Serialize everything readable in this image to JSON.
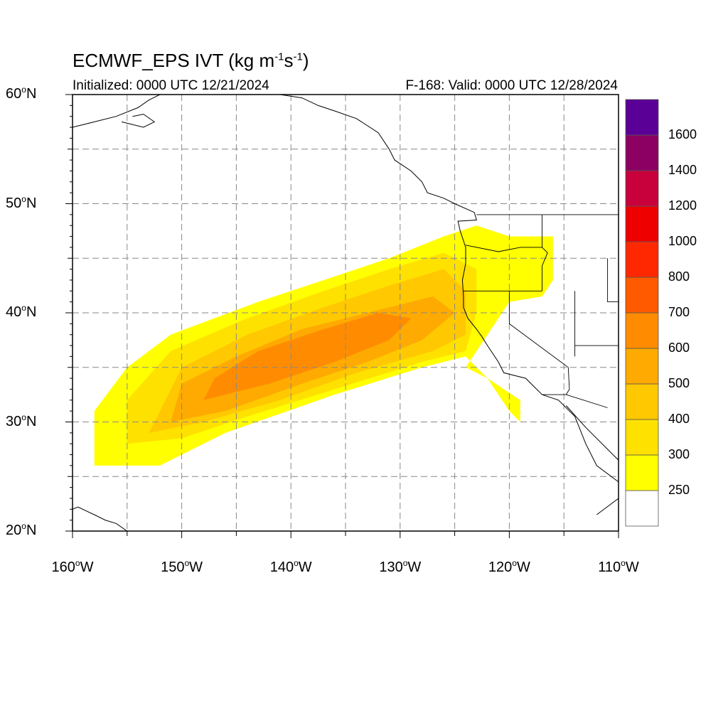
{
  "title": {
    "model": "ECMWF_EPS IVT",
    "units_prefix": "(kg m",
    "exp1": "-1",
    "units_mid": "s",
    "exp2": "-1",
    "units_suffix": ")"
  },
  "subtitle_left": "Initialized: 0000 UTC 12/21/2024",
  "subtitle_right": "F-168: Valid: 0000 UTC 12/28/2024",
  "map": {
    "lon_range": [
      -160,
      -110
    ],
    "lat_range": [
      20,
      60
    ],
    "lat_ticks": [
      {
        "value": 60,
        "num": "60",
        "suffix": "N"
      },
      {
        "value": 50,
        "num": "50",
        "suffix": "N"
      },
      {
        "value": 40,
        "num": "40",
        "suffix": "N"
      },
      {
        "value": 30,
        "num": "30",
        "suffix": "N"
      },
      {
        "value": 20,
        "num": "20",
        "suffix": "N"
      }
    ],
    "lon_ticks": [
      {
        "value": -160,
        "num": "160",
        "suffix": "W"
      },
      {
        "value": -150,
        "num": "150",
        "suffix": "W"
      },
      {
        "value": -140,
        "num": "140",
        "suffix": "W"
      },
      {
        "value": -130,
        "num": "130",
        "suffix": "W"
      },
      {
        "value": -120,
        "num": "120",
        "suffix": "W"
      },
      {
        "value": -110,
        "num": "110",
        "suffix": "W"
      }
    ],
    "grid_lon": [
      -155,
      -150,
      -145,
      -140,
      -135,
      -130,
      -125,
      -120,
      -115
    ],
    "grid_lat": [
      25,
      30,
      35,
      40,
      45,
      50,
      55
    ],
    "grid_style": "dashed gray"
  },
  "colorbar": {
    "labels": [
      "250",
      "300",
      "400",
      "500",
      "600",
      "700",
      "800",
      "1000",
      "1200",
      "1400",
      "1600"
    ],
    "colors": [
      "#ffffff",
      "#ffff00",
      "#ffe100",
      "#ffc800",
      "#ffaa00",
      "#ff8c00",
      "#ff5a00",
      "#ff2800",
      "#ee0000",
      "#c8003c",
      "#8c0064",
      "#5a0096"
    ]
  },
  "ivt_field": {
    "description_units": "kg m-1 s-1",
    "bands": [
      {
        "level": 250,
        "color": "#ffff00",
        "polygon": [
          [
            -158,
            26
          ],
          [
            -152,
            26
          ],
          [
            -146,
            29
          ],
          [
            -136,
            32.5
          ],
          [
            -128,
            35
          ],
          [
            -124,
            36
          ],
          [
            -122,
            34
          ],
          [
            -119,
            32
          ],
          [
            -119,
            30
          ],
          [
            -120,
            31
          ],
          [
            -122,
            34
          ],
          [
            -124,
            35
          ],
          [
            -122,
            38
          ],
          [
            -120,
            41
          ],
          [
            -117,
            41.5
          ],
          [
            -116,
            43
          ],
          [
            -116,
            47
          ],
          [
            -120,
            47
          ],
          [
            -123,
            48
          ],
          [
            -126,
            47
          ],
          [
            -131,
            45
          ],
          [
            -137,
            43
          ],
          [
            -143,
            41
          ],
          [
            -151,
            38
          ],
          [
            -155,
            35
          ],
          [
            -158,
            31
          ]
        ]
      },
      {
        "level": 300,
        "color": "#ffe100",
        "polygon": [
          [
            -155,
            28
          ],
          [
            -150,
            28.5
          ],
          [
            -144,
            30.5
          ],
          [
            -136,
            33
          ],
          [
            -128,
            35.5
          ],
          [
            -124,
            36.5
          ],
          [
            -123,
            40
          ],
          [
            -123,
            44
          ],
          [
            -126,
            45.5
          ],
          [
            -131,
            44
          ],
          [
            -137,
            42
          ],
          [
            -144,
            39.5
          ],
          [
            -151,
            36.5
          ],
          [
            -155,
            32
          ]
        ]
      },
      {
        "level": 400,
        "color": "#ffc800",
        "polygon": [
          [
            -153,
            29
          ],
          [
            -148,
            30
          ],
          [
            -141,
            32
          ],
          [
            -134,
            34.5
          ],
          [
            -127,
            36.5
          ],
          [
            -124,
            38
          ],
          [
            -124,
            42
          ],
          [
            -126,
            44
          ],
          [
            -131,
            42.5
          ],
          [
            -137,
            40.5
          ],
          [
            -144,
            38
          ],
          [
            -150,
            35
          ]
        ]
      },
      {
        "level": 500,
        "color": "#ffaa00",
        "polygon": [
          [
            -151,
            30
          ],
          [
            -146,
            31
          ],
          [
            -139,
            33.5
          ],
          [
            -133,
            35.5
          ],
          [
            -128,
            37.5
          ],
          [
            -125,
            40
          ],
          [
            -127,
            41.5
          ],
          [
            -133,
            40
          ],
          [
            -139,
            38.5
          ],
          [
            -145,
            36
          ],
          [
            -150,
            33.5
          ]
        ]
      },
      {
        "level": 600,
        "color": "#ff8c00",
        "polygon": [
          [
            -148,
            32
          ],
          [
            -142,
            33.5
          ],
          [
            -136,
            35.5
          ],
          [
            -131,
            37.5
          ],
          [
            -129,
            39.5
          ],
          [
            -132,
            40
          ],
          [
            -137,
            38.5
          ],
          [
            -143,
            36.5
          ],
          [
            -147,
            34
          ]
        ]
      }
    ]
  },
  "coastline": {
    "north_america": [
      [
        -112,
        21.5
      ],
      [
        -110,
        23
      ],
      [
        -110,
        24.5
      ],
      [
        -112,
        26
      ],
      [
        -113,
        28
      ],
      [
        -114,
        30.5
      ],
      [
        -115.5,
        32
      ],
      [
        -117,
        32.5
      ],
      [
        -118.5,
        34
      ],
      [
        -120.5,
        34.5
      ],
      [
        -121,
        35.5
      ],
      [
        -122,
        37
      ],
      [
        -122.5,
        37.8
      ],
      [
        -123,
        38.5
      ],
      [
        -123.8,
        39.5
      ],
      [
        -124.2,
        40.5
      ],
      [
        -124.2,
        41.5
      ],
      [
        -124.3,
        43
      ],
      [
        -124,
        44.5
      ],
      [
        -124,
        46
      ],
      [
        -124.5,
        47.5
      ],
      [
        -124.7,
        48.4
      ],
      [
        -123,
        48.5
      ],
      [
        -123.2,
        49.2
      ],
      [
        -125,
        50
      ],
      [
        -126,
        50.5
      ],
      [
        -127.5,
        51
      ],
      [
        -128,
        52
      ],
      [
        -129,
        53
      ],
      [
        -130.5,
        54
      ],
      [
        -131,
        55
      ],
      [
        -132,
        56.5
      ],
      [
        -134,
        57.8
      ],
      [
        -136,
        58.5
      ],
      [
        -137.5,
        59
      ],
      [
        -139,
        59.7
      ],
      [
        -141,
        60
      ]
    ],
    "gulf_of_california": [
      [
        -114.8,
        31.5
      ],
      [
        -113,
        29.5
      ],
      [
        -111,
        27.5
      ],
      [
        -109.5,
        26
      ],
      [
        -109.5,
        24
      ]
    ],
    "alaska_peninsula": [
      [
        -160,
        57
      ],
      [
        -158,
        57.5
      ],
      [
        -156,
        58
      ],
      [
        -154,
        58.8
      ],
      [
        -153,
        59.5
      ],
      [
        -152,
        60
      ]
    ],
    "hawaii": [
      [
        -160,
        22
      ],
      [
        -159.5,
        22.2
      ],
      [
        -158,
        21.5
      ],
      [
        -157,
        21
      ],
      [
        -156,
        20.7
      ],
      [
        -155,
        20
      ]
    ],
    "islands_north": [
      [
        -155.5,
        57.5
      ],
      [
        -153.5,
        57
      ],
      [
        -152.5,
        57.5
      ],
      [
        -153.5,
        58.2
      ],
      [
        -154.5,
        58
      ]
    ]
  },
  "borders": {
    "us_canada": [
      [
        -123,
        49
      ],
      [
        -95,
        49
      ]
    ],
    "us_mexico": [
      [
        -117,
        32.5
      ],
      [
        -114.8,
        32.5
      ],
      [
        -111,
        31.3
      ]
    ],
    "oregon_california": [
      [
        -124.2,
        42
      ],
      [
        -120,
        42
      ],
      [
        -117,
        42
      ]
    ],
    "washington_oregon": [
      [
        -124,
        46.2
      ],
      [
        -121,
        45.6
      ],
      [
        -119,
        46
      ],
      [
        -117,
        46
      ]
    ],
    "idaho_west": [
      [
        -117,
        49
      ],
      [
        -117,
        46
      ],
      [
        -116.5,
        45.5
      ],
      [
        -117,
        44.3
      ],
      [
        -117,
        42
      ]
    ],
    "nevada_east": [
      [
        -114,
        42
      ],
      [
        -114,
        36
      ]
    ],
    "california_nevada": [
      [
        -120,
        42
      ],
      [
        -120,
        39
      ],
      [
        -114.6,
        35
      ]
    ],
    "colorado_river": [
      [
        -114.6,
        35
      ],
      [
        -114.5,
        33
      ],
      [
        -114.8,
        32.5
      ]
    ],
    "utah_arizona": [
      [
        -114,
        37
      ],
      [
        -110,
        37
      ]
    ],
    "wyoming": [
      [
        -111,
        45
      ],
      [
        -111,
        41
      ],
      [
        -110,
        41
      ]
    ]
  }
}
